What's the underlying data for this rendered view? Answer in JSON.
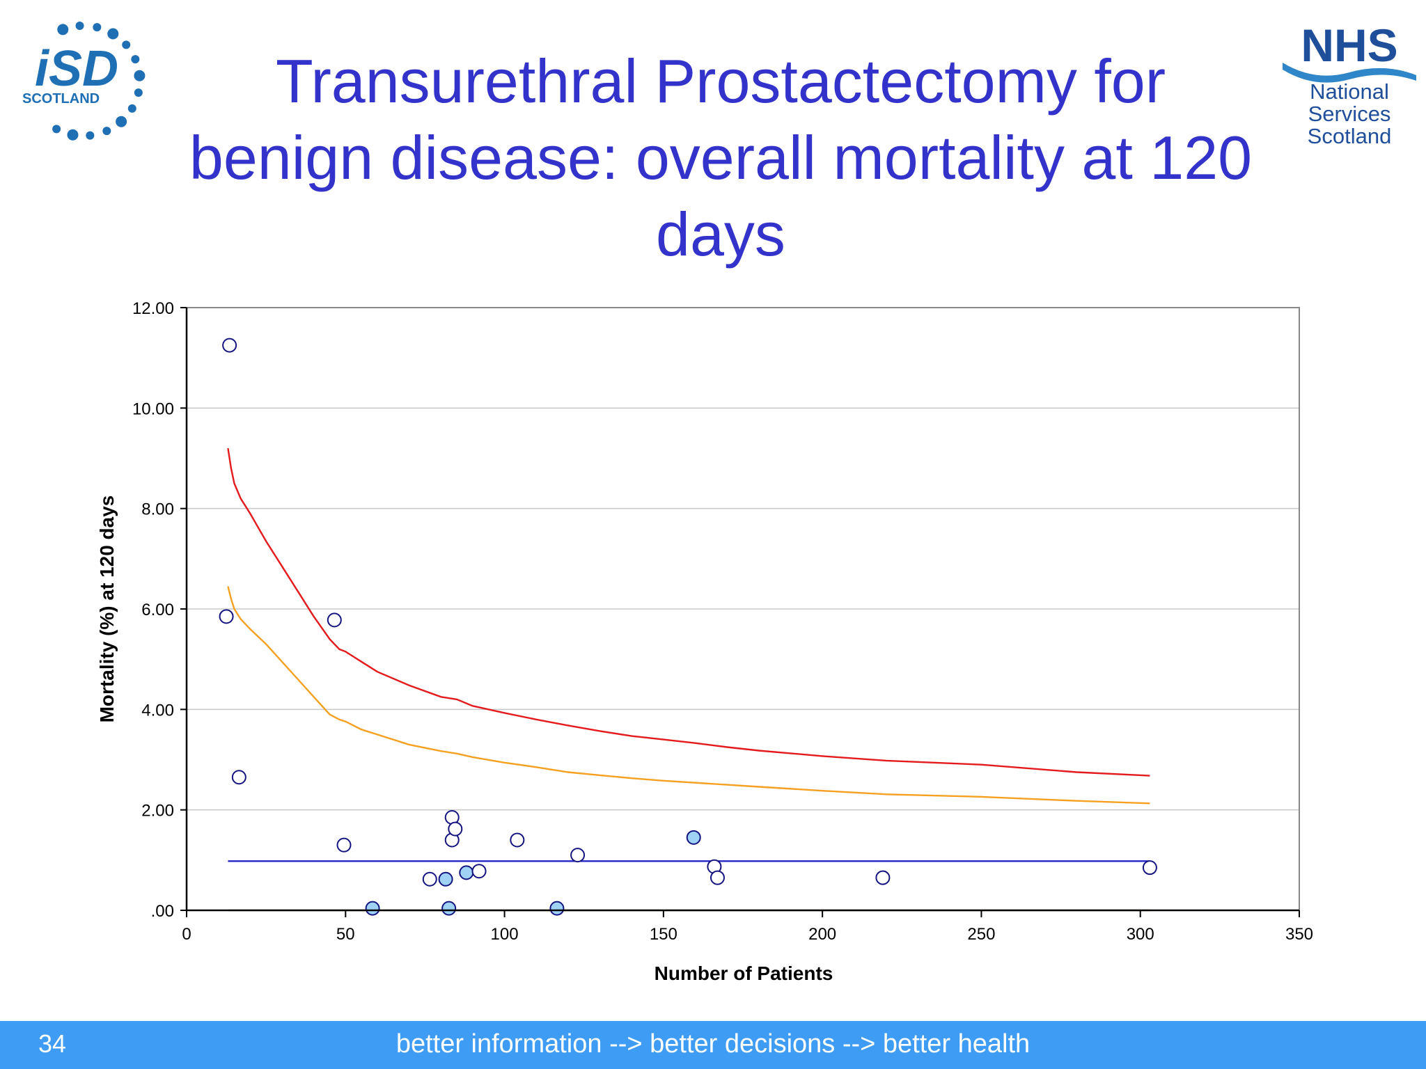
{
  "slide": {
    "title": "Transurethral Prostactectomy for benign disease: overall mortality at 120 days",
    "slide_number": "34",
    "tagline": "better information --> better decisions --> better health"
  },
  "logos": {
    "isd": {
      "text_top": "iSD",
      "text_bottom": "SCOTLAND"
    },
    "nhs": {
      "text_top": "NHS",
      "line1": "National",
      "line2": "Services",
      "line3": "Scotland"
    }
  },
  "colors": {
    "title": "#3333cc",
    "footer": "#3f9cf4",
    "upper_limit": "#e41a1c",
    "warning_limit": "#f5a020",
    "mean_line": "#2424c8",
    "lower_limit": "#e8a040",
    "marker_edge": "#141480",
    "marker_fill_highlight": "#9fd2f4",
    "nhs_blue": "#1f4e9a",
    "isd_blue": "#1f6fb4"
  },
  "chart_data": {
    "type": "scatter",
    "xlabel": "Number of Patients",
    "ylabel": "Mortality (%) at 120 days",
    "xlim": [
      0,
      350
    ],
    "ylim": [
      0,
      12
    ],
    "x_ticks": [
      "0",
      "50",
      "100",
      "150",
      "200",
      "250",
      "300",
      "350"
    ],
    "y_ticks": [
      ".00",
      "2.00",
      "4.00",
      "6.00",
      "8.00",
      "10.00",
      "12.00"
    ],
    "grid": "horizontal",
    "points": [
      {
        "x": 13.5,
        "y": 11.25,
        "filled": false
      },
      {
        "x": 12.5,
        "y": 5.85,
        "filled": false
      },
      {
        "x": 16.5,
        "y": 2.65,
        "filled": false
      },
      {
        "x": 46.5,
        "y": 5.78,
        "filled": false
      },
      {
        "x": 49.5,
        "y": 1.3,
        "filled": false
      },
      {
        "x": 58.5,
        "y": 0.04,
        "filled": true
      },
      {
        "x": 76.5,
        "y": 0.62,
        "filled": false
      },
      {
        "x": 81.5,
        "y": 0.62,
        "filled": true
      },
      {
        "x": 82.5,
        "y": 0.04,
        "filled": true
      },
      {
        "x": 83.5,
        "y": 1.85,
        "filled": false
      },
      {
        "x": 83.5,
        "y": 1.4,
        "filled": false
      },
      {
        "x": 84.5,
        "y": 1.62,
        "filled": false
      },
      {
        "x": 88,
        "y": 0.75,
        "filled": true
      },
      {
        "x": 92,
        "y": 0.78,
        "filled": false
      },
      {
        "x": 104,
        "y": 1.4,
        "filled": false
      },
      {
        "x": 116.5,
        "y": 0.04,
        "filled": true
      },
      {
        "x": 123,
        "y": 1.1,
        "filled": false
      },
      {
        "x": 159.5,
        "y": 1.45,
        "filled": true
      },
      {
        "x": 166,
        "y": 0.87,
        "filled": false
      },
      {
        "x": 167,
        "y": 0.65,
        "filled": false
      },
      {
        "x": 219,
        "y": 0.65,
        "filled": false
      },
      {
        "x": 303,
        "y": 0.85,
        "filled": false
      }
    ],
    "series": [
      {
        "line": "upper",
        "x": [
          13,
          14,
          15,
          17,
          20,
          25,
          30,
          35,
          40,
          45,
          48,
          50,
          55,
          60,
          70,
          80,
          85,
          90,
          100,
          110,
          120,
          130,
          140,
          150,
          160,
          170,
          180,
          200,
          220,
          250,
          280,
          303
        ],
        "y": [
          9.2,
          8.8,
          8.5,
          8.2,
          7.9,
          7.35,
          6.85,
          6.35,
          5.85,
          5.4,
          5.2,
          5.15,
          4.95,
          4.75,
          4.48,
          4.25,
          4.2,
          4.07,
          3.93,
          3.8,
          3.68,
          3.57,
          3.47,
          3.4,
          3.33,
          3.25,
          3.18,
          3.07,
          2.98,
          2.9,
          2.75,
          2.68
        ]
      },
      {
        "line": "warning",
        "x": [
          13,
          14,
          15,
          17,
          20,
          25,
          30,
          35,
          40,
          45,
          48,
          50,
          55,
          60,
          70,
          80,
          85,
          90,
          100,
          110,
          120,
          130,
          140,
          150,
          160,
          170,
          180,
          200,
          220,
          250,
          280,
          303
        ],
        "y": [
          6.45,
          6.2,
          6.0,
          5.8,
          5.6,
          5.3,
          4.95,
          4.6,
          4.25,
          3.9,
          3.8,
          3.76,
          3.6,
          3.5,
          3.3,
          3.17,
          3.12,
          3.05,
          2.94,
          2.85,
          2.75,
          2.69,
          2.63,
          2.58,
          2.54,
          2.5,
          2.46,
          2.38,
          2.31,
          2.26,
          2.18,
          2.13
        ]
      },
      {
        "line": "mean",
        "x": [
          13,
          303
        ],
        "y": [
          0.98,
          0.98
        ]
      },
      {
        "line": "lower",
        "x": [
          13,
          303
        ],
        "y": [
          0.0,
          0.0
        ]
      }
    ]
  }
}
